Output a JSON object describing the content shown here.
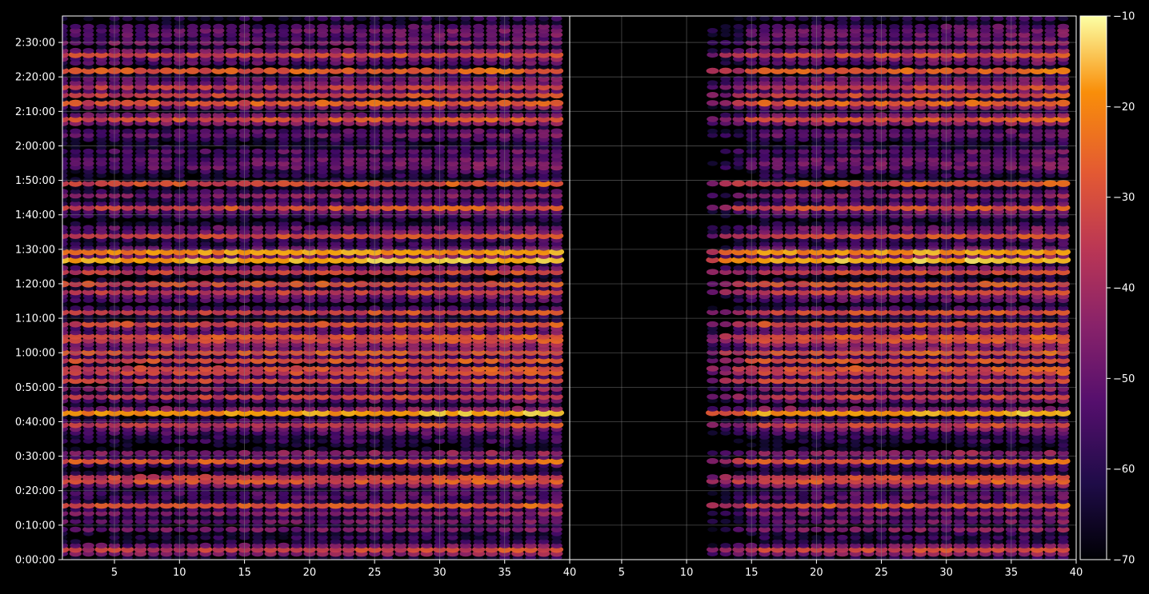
{
  "chart_data": {
    "type": "heatmap",
    "title": "",
    "xlabel": "",
    "ylabel": "",
    "panels": [
      {
        "name": "",
        "x_ticks": [
          5,
          10,
          15,
          20,
          25,
          30,
          35,
          40
        ],
        "x_range": [
          1,
          40
        ],
        "y_ticks": [
          "0:00:00",
          "0:10:00",
          "0:20:00",
          "0:30:00",
          "0:40:00",
          "0:50:00",
          "1:00:00",
          "1:10:00",
          "1:20:00",
          "1:30:00",
          "1:40:00",
          "1:50:00",
          "2:00:00",
          "2:10:00",
          "2:20:00",
          "2:30:00"
        ],
        "y_range_seconds": [
          0,
          9460
        ],
        "data_x_range": [
          1,
          39
        ],
        "grid": true
      },
      {
        "name": "",
        "x_ticks": [
          5,
          10,
          15,
          20,
          25,
          30,
          35,
          40
        ],
        "x_range": [
          1,
          40
        ],
        "y_range_seconds": [
          0,
          9460
        ],
        "data_x_range": [
          12,
          39
        ],
        "grid": true
      }
    ],
    "colorbar": {
      "colormap": "inferno",
      "range": [
        -70,
        -10
      ],
      "ticks": [
        "−70",
        "−60",
        "−50",
        "−40",
        "−30",
        "−20",
        "−10"
      ]
    },
    "strong_bands_time": [
      "0:42:30",
      "1:26:40",
      "1:29:00"
    ],
    "strong_band_values": [
      -22,
      -20,
      -24
    ],
    "colors": {
      "background": "#000000",
      "axis": "#ffffff",
      "grid": "#808080"
    }
  }
}
